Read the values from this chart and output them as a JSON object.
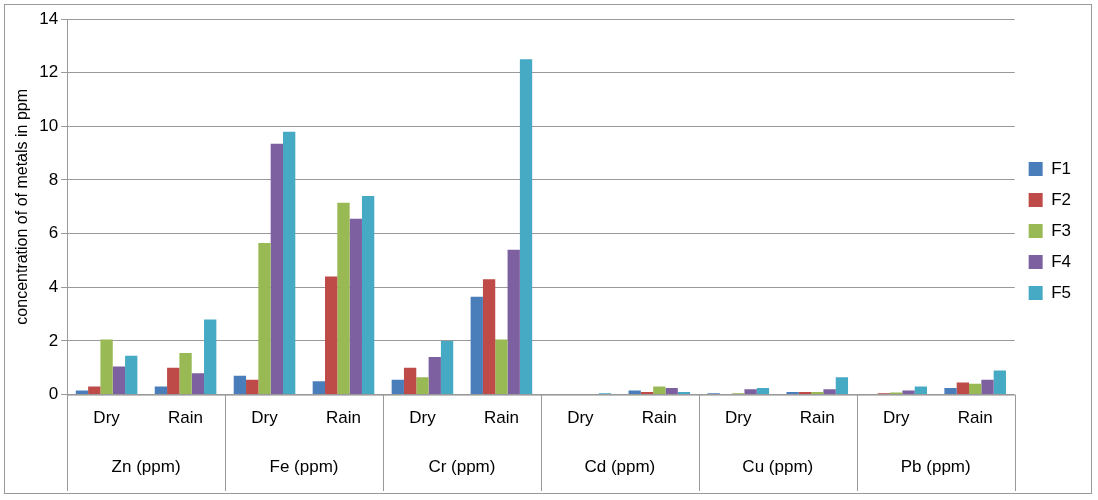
{
  "chart_data": {
    "type": "bar",
    "ylabel": "concentration of of metals in ppm",
    "categories": [
      "Dry",
      "Rain",
      "Dry",
      "Rain",
      "Dry",
      "Rain",
      "Dry",
      "Rain",
      "Dry",
      "Rain",
      "Dry",
      "Rain"
    ],
    "annotations": [
      "Zn (ppm)",
      "Fe (ppm)",
      "Cr (ppm)",
      "Cd (ppm)",
      "Cu (ppm)",
      "Pb (ppm)"
    ],
    "series": [
      {
        "name": "F1",
        "color": "#4a7ebb",
        "values": [
          0.15,
          0.3,
          0.7,
          0.5,
          0.55,
          3.65,
          0,
          0.15,
          0.05,
          0.1,
          0,
          0.25
        ]
      },
      {
        "name": "F2",
        "color": "#be4b48",
        "values": [
          0.3,
          1.0,
          0.55,
          4.4,
          1.0,
          4.3,
          0,
          0.1,
          0,
          0.1,
          0.05,
          0.45
        ]
      },
      {
        "name": "F3",
        "color": "#98b954",
        "values": [
          2.05,
          1.55,
          5.65,
          7.15,
          0.65,
          2.05,
          0,
          0.3,
          0.05,
          0.1,
          0.08,
          0.4
        ]
      },
      {
        "name": "F4",
        "color": "#7d60a0",
        "values": [
          1.05,
          0.8,
          9.35,
          6.55,
          1.4,
          5.4,
          0.02,
          0.25,
          0.2,
          0.2,
          0.15,
          0.55
        ]
      },
      {
        "name": "F5",
        "color": "#46aac5",
        "values": [
          1.45,
          2.8,
          9.8,
          7.4,
          2.0,
          12.5,
          0.05,
          0.1,
          0.25,
          0.65,
          0.3,
          0.9
        ]
      }
    ],
    "ylim": [
      0,
      14
    ],
    "yticks": [
      0,
      2,
      4,
      6,
      8,
      10,
      12,
      14
    ],
    "grid": "y",
    "legend": "right"
  }
}
